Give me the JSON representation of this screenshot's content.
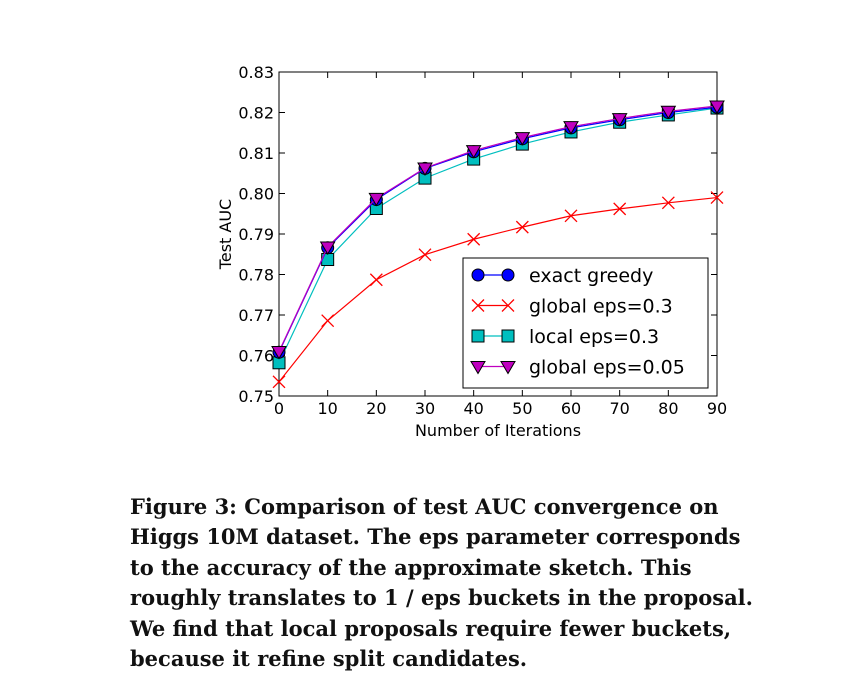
{
  "chart_data": {
    "type": "line",
    "xlabel": "Number of Iterations",
    "ylabel": "Test AUC",
    "xlim": [
      0,
      90
    ],
    "ylim": [
      0.75,
      0.83
    ],
    "xticks": [
      "0",
      "10",
      "20",
      "30",
      "40",
      "50",
      "60",
      "70",
      "80",
      "90"
    ],
    "yticks": [
      "0.75",
      "0.76",
      "0.77",
      "0.78",
      "0.79",
      "0.80",
      "0.81",
      "0.82",
      "0.83"
    ],
    "grid": false,
    "legend_position": "lower-right",
    "x": [
      0,
      10,
      20,
      30,
      40,
      50,
      60,
      70,
      80,
      90
    ],
    "series": [
      {
        "name": "exact greedy",
        "color": "#0000ff",
        "marker": "circle",
        "values": [
          0.7608,
          0.7866,
          0.7985,
          0.8062,
          0.8103,
          0.8135,
          0.8162,
          0.8182,
          0.82,
          0.8213
        ]
      },
      {
        "name": "global eps=0.3",
        "color": "#ff0000",
        "marker": "x",
        "values": [
          0.7535,
          0.7686,
          0.7787,
          0.7849,
          0.7887,
          0.7917,
          0.7945,
          0.7962,
          0.7977,
          0.799
        ]
      },
      {
        "name": "local eps=0.3",
        "color": "#00bfbf",
        "marker": "square",
        "values": [
          0.7582,
          0.7837,
          0.7963,
          0.8038,
          0.8085,
          0.8122,
          0.8152,
          0.8176,
          0.8194,
          0.8211
        ]
      },
      {
        "name": "global eps=0.05",
        "color": "#bf00bf",
        "marker": "triangle-down",
        "values": [
          0.761,
          0.7868,
          0.7988,
          0.8063,
          0.8106,
          0.8138,
          0.8165,
          0.8185,
          0.8203,
          0.8216
        ]
      }
    ]
  },
  "caption": {
    "lines": [
      "Figure 3: Comparison of test AUC convergence on",
      "Higgs 10M dataset. The eps parameter corresponds",
      "to the accuracy of the approximate sketch. This",
      "roughly translates to 1 / eps buckets in the proposal.",
      "We find that local proposals require fewer buckets,",
      "because it refine split candidates."
    ]
  }
}
